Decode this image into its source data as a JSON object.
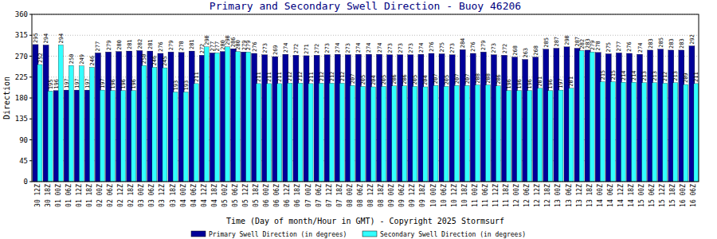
{
  "chart_data": {
    "type": "bar",
    "title": "Primary and Secondary Swell Direction - Buoy 46206",
    "x_label": "Time (Day of month/Hour in GMT) - Copyright 2025 Stormsurf",
    "y_label": "Direction",
    "categories": [
      "30 12Z",
      "30 18Z",
      "01 00Z",
      "01 06Z",
      "01 12Z",
      "01 18Z",
      "02 00Z",
      "02 06Z",
      "02 12Z",
      "02 18Z",
      "03 00Z",
      "03 06Z",
      "03 12Z",
      "03 18Z",
      "04 00Z",
      "04 06Z",
      "04 12Z",
      "04 18Z",
      "05 00Z",
      "05 06Z",
      "05 12Z",
      "05 18Z",
      "06 00Z",
      "06 06Z",
      "06 12Z",
      "06 18Z",
      "07 00Z",
      "07 06Z",
      "07 12Z",
      "07 18Z",
      "08 00Z",
      "08 06Z",
      "08 12Z",
      "08 18Z",
      "09 00Z",
      "09 06Z",
      "09 12Z",
      "09 18Z",
      "10 00Z",
      "10 06Z",
      "10 12Z",
      "10 18Z",
      "11 00Z",
      "11 06Z",
      "11 12Z",
      "11 18Z",
      "12 00Z",
      "12 06Z",
      "12 12Z",
      "12 18Z",
      "13 00Z",
      "13 06Z",
      "13 12Z",
      "13 18Z",
      "14 00Z",
      "14 06Z",
      "14 12Z",
      "14 18Z",
      "15 00Z",
      "15 06Z",
      "15 12Z",
      "15 18Z",
      "16 00Z",
      "16 06Z"
    ],
    "series": [
      {
        "name": "Primary Swell Direction (in degrees)",
        "color": "#000099",
        "values": [
          295,
          294,
          196,
          197,
          197,
          197,
          277,
          279,
          280,
          281,
          282,
          281,
          276,
          279,
          278,
          281,
          272,
          277,
          280,
          286,
          279,
          276,
          273,
          269,
          274,
          272,
          271,
          272,
          273,
          274,
          273,
          274,
          274,
          274,
          273,
          273,
          273,
          274,
          276,
          275,
          273,
          284,
          276,
          279,
          273,
          272,
          268,
          263,
          268,
          285,
          287,
          290,
          287,
          283,
          278,
          275,
          277,
          276,
          274,
          283,
          285,
          283,
          283,
          292
        ]
      },
      {
        "name": "Secondary Swell Direction (in degrees)",
        "color": "#33ffff",
        "values": [
          252,
          195,
          294,
          250,
          249,
          246,
          197,
          196,
          196,
          196,
          250,
          246,
          245,
          193,
          193,
          211,
          290,
          277,
          290,
          280,
          279,
          211,
          211,
          211,
          212,
          212,
          211,
          212,
          212,
          212,
          207,
          205,
          204,
          205,
          206,
          206,
          205,
          204,
          207,
          205,
          207,
          207,
          208,
          208,
          206,
          196,
          196,
          196,
          201,
          196,
          197,
          201,
          282,
          279,
          215,
          215,
          214,
          214,
          213,
          213,
          212,
          213,
          209,
          211
        ]
      }
    ],
    "ylim": [
      0,
      360
    ],
    "yticks": [
      0,
      45,
      90,
      135,
      180,
      225,
      270,
      315,
      360
    ],
    "grid": true,
    "data_labels": true,
    "legend": "bottom"
  }
}
